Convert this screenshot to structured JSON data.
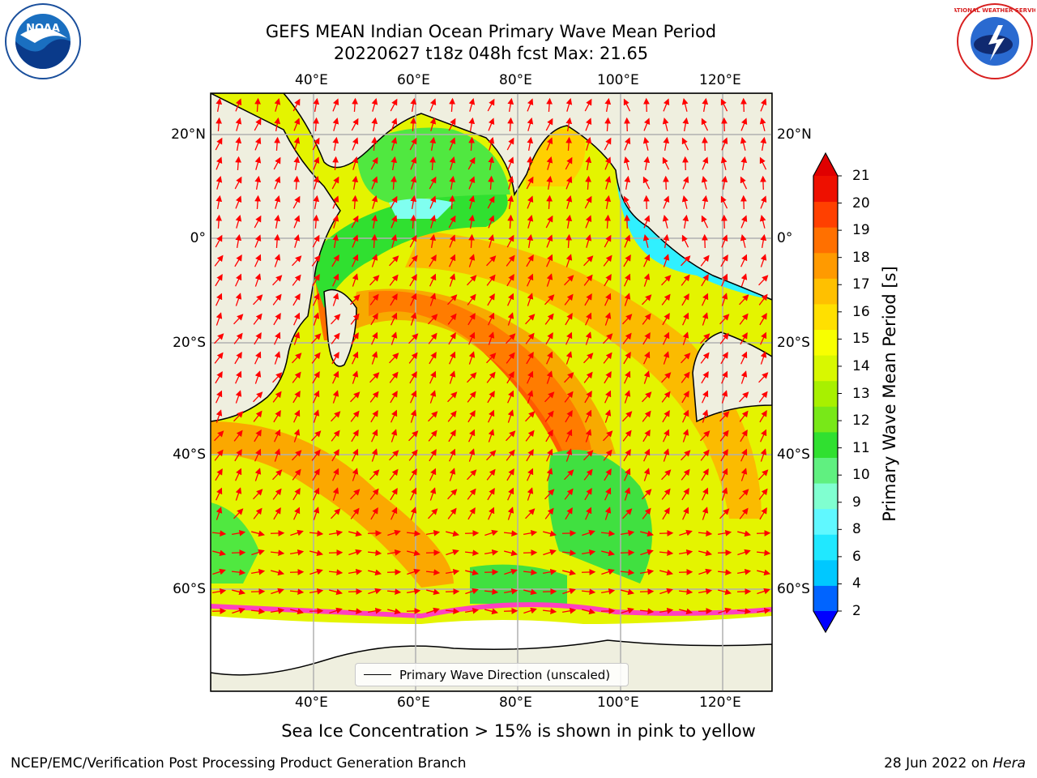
{
  "title": {
    "line1": "GEFS MEAN Indian Ocean Primary Wave Mean Period",
    "line2": "20220627 t18z 048h fcst   Max: 21.65"
  },
  "map": {
    "lon_labels": [
      "40°E",
      "60°E",
      "80°E",
      "100°E",
      "120°E"
    ],
    "lat_labels": [
      "20°N",
      "0°",
      "20°S",
      "40°S",
      "60°S"
    ],
    "extent": {
      "lon": [
        20,
        130
      ],
      "lat": [
        -75,
        27
      ]
    },
    "grid": true,
    "legend_label": "Primary Wave Direction (unscaled)"
  },
  "colorbar": {
    "label": "Primary Wave Mean Period [s]",
    "ticks": [
      "2",
      "4",
      "6",
      "8",
      "9",
      "10",
      "11",
      "12",
      "13",
      "14",
      "15",
      "16",
      "17",
      "18",
      "19",
      "20",
      "21"
    ],
    "colors": [
      "#0a3cff",
      "#0064ff",
      "#00c8ff",
      "#20e8ff",
      "#60f8ff",
      "#80ffd0",
      "#60f080",
      "#30e030",
      "#78e818",
      "#a8f000",
      "#d8f800",
      "#f8ff00",
      "#ffe000",
      "#ffc000",
      "#ff9a00",
      "#ff7000",
      "#ff4000",
      "#ee1000"
    ],
    "over_color": "#e00000",
    "under_color": "#0000ff"
  },
  "caption": "Sea Ice Concentration > 15% is shown in pink to yellow",
  "footer": {
    "left": "NCEP/EMC/Verification Post Processing Product Generation Branch",
    "right_date": "28 Jun 2022 on ",
    "right_host": "Hera"
  },
  "logos": {
    "noaa": "NOAA",
    "nws_text": "NATIONAL WEATHER SERVICE"
  }
}
